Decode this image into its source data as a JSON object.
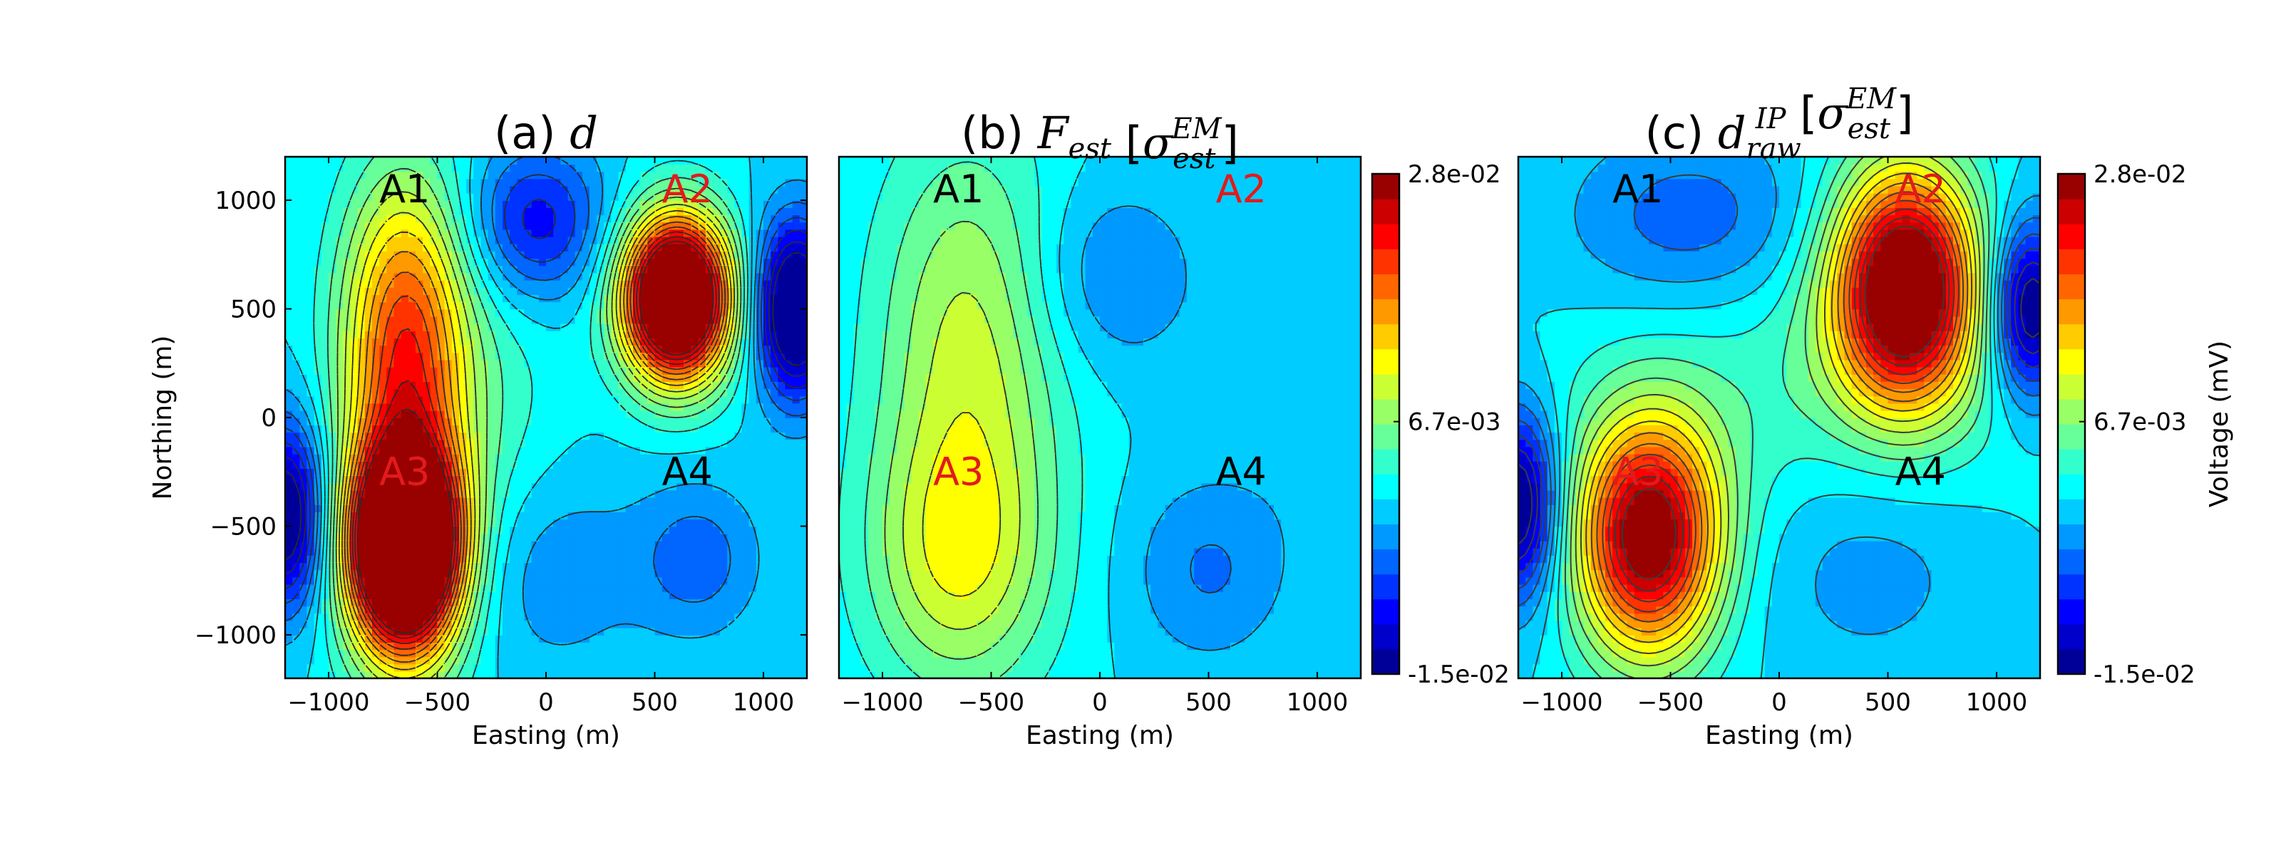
{
  "chart_data": [
    {
      "type": "heatmap",
      "panel": "a",
      "title": "(a) d",
      "title_text": "(a) ",
      "title_math": "d",
      "title_math_sub": "",
      "title_math_sup": "",
      "title_math_arg": "",
      "xlabel": "Easting (m)",
      "ylabel": "Northing (m)",
      "xlim": [
        -1200,
        1200
      ],
      "ylim": [
        -1200,
        1200
      ],
      "xticks": [
        -1000,
        -500,
        0,
        500,
        1000
      ],
      "yticks": [
        1000,
        500,
        0,
        -500,
        -1000
      ],
      "xticklabels": [
        "−1000",
        "−500",
        "0",
        "500",
        "1000"
      ],
      "yticklabels": [
        "1000",
        "500",
        "0",
        "−500",
        "−1000"
      ],
      "contour_line_style": "dashed",
      "sources": [
        {
          "x": 600,
          "y": 550,
          "amp": 0.043,
          "sx": 170,
          "sy": 260
        },
        {
          "x": -650,
          "y": -600,
          "amp": 0.043,
          "sx": 170,
          "sy": 300
        },
        {
          "x": -650,
          "y": 450,
          "amp": 0.016,
          "sx": 200,
          "sy": 500
        },
        {
          "x": -650,
          "y": -400,
          "amp": 0.012,
          "sx": 200,
          "sy": 600
        },
        {
          "x": 1150,
          "y": 500,
          "amp": -0.02,
          "sx": 130,
          "sy": 280
        },
        {
          "x": -1200,
          "y": -450,
          "amp": -0.017,
          "sx": 130,
          "sy": 300
        },
        {
          "x": -50,
          "y": 900,
          "amp": -0.01,
          "sx": 220,
          "sy": 250
        },
        {
          "x": 700,
          "y": -650,
          "amp": -0.0055,
          "sx": 200,
          "sy": 250
        },
        {
          "x": 0,
          "y": -700,
          "amp": -0.004,
          "sx": 300,
          "sy": 350
        },
        {
          "x": -250,
          "y": 0,
          "amp": 0.003,
          "sx": 250,
          "sy": 600
        }
      ],
      "annotations": [
        {
          "text": "A1",
          "x": -650,
          "y": 1050,
          "color": "#000000"
        },
        {
          "text": "A2",
          "x": 650,
          "y": 1050,
          "color": "#e31a1c"
        },
        {
          "text": "A3",
          "x": -650,
          "y": -250,
          "color": "#e31a1c"
        },
        {
          "text": "A4",
          "x": 650,
          "y": -250,
          "color": "#000000"
        }
      ]
    },
    {
      "type": "heatmap",
      "panel": "b",
      "title": "(b) F[σ_est^EM]",
      "title_text": "(b) ",
      "title_math": "F",
      "title_math_sub": "est",
      "title_math_sup": "EM",
      "title_math_arg": "σ",
      "xlabel": "Easting (m)",
      "ylabel": "",
      "xlim": [
        -1200,
        1200
      ],
      "ylim": [
        -1200,
        1200
      ],
      "xticks": [
        -1000,
        -500,
        0,
        500,
        1000
      ],
      "yticks": [],
      "xticklabels": [
        "−1000",
        "−500",
        "0",
        "500",
        "1000"
      ],
      "yticklabels": [],
      "contour_line_style": "dashed",
      "sources": [
        {
          "x": -600,
          "y": 400,
          "amp": 0.009,
          "sx": 300,
          "sy": 650
        },
        {
          "x": -650,
          "y": -650,
          "amp": 0.01,
          "sx": 300,
          "sy": 450
        },
        {
          "x": 50,
          "y": 650,
          "amp": -0.0045,
          "sx": 280,
          "sy": 300
        },
        {
          "x": 500,
          "y": -700,
          "amp": -0.0045,
          "sx": 250,
          "sy": 300
        },
        {
          "x": 1000,
          "y": 100,
          "amp": -0.0015,
          "sx": 250,
          "sy": 500
        }
      ],
      "annotations": [
        {
          "text": "A1",
          "x": -650,
          "y": 1050,
          "color": "#000000"
        },
        {
          "text": "A2",
          "x": 650,
          "y": 1050,
          "color": "#e31a1c"
        },
        {
          "text": "A3",
          "x": -650,
          "y": -250,
          "color": "#e31a1c"
        },
        {
          "text": "A4",
          "x": 650,
          "y": -250,
          "color": "#000000"
        }
      ]
    },
    {
      "type": "heatmap",
      "panel": "c",
      "title": "(c) d_raw^IP[σ_est^EM]",
      "title_text": "(c) ",
      "title_math": "d",
      "title_math_sub": "raw",
      "title_math_sup": "IP",
      "title_math_arg": "σ",
      "title_math_arg_sub": "est",
      "title_math_arg_sup": "EM",
      "xlabel": "Easting (m)",
      "ylabel": "",
      "xlim": [
        -1200,
        1200
      ],
      "ylim": [
        -1200,
        1200
      ],
      "xticks": [
        -1000,
        -500,
        0,
        500,
        1000
      ],
      "yticks": [],
      "xticklabels": [
        "−1000",
        "−500",
        "0",
        "500",
        "1000"
      ],
      "yticklabels": [],
      "contour_line_style": "solid",
      "sources": [
        {
          "x": 580,
          "y": 600,
          "amp": 0.033,
          "sx": 230,
          "sy": 380
        },
        {
          "x": -600,
          "y": -550,
          "amp": 0.029,
          "sx": 230,
          "sy": 380
        },
        {
          "x": 150,
          "y": 100,
          "amp": 0.004,
          "sx": 700,
          "sy": 500
        },
        {
          "x": 1150,
          "y": 500,
          "amp": -0.017,
          "sx": 130,
          "sy": 280
        },
        {
          "x": -1200,
          "y": -400,
          "amp": -0.017,
          "sx": 130,
          "sy": 300
        },
        {
          "x": -400,
          "y": 900,
          "amp": -0.006,
          "sx": 400,
          "sy": 300
        },
        {
          "x": 400,
          "y": -600,
          "amp": -0.004,
          "sx": 400,
          "sy": 400
        }
      ],
      "annotations": [
        {
          "text": "A1",
          "x": -650,
          "y": 1050,
          "color": "#000000"
        },
        {
          "text": "A2",
          "x": 650,
          "y": 1050,
          "color": "#e31a1c"
        },
        {
          "text": "A3",
          "x": -650,
          "y": -250,
          "color": "#e31a1c"
        },
        {
          "text": "A4",
          "x": 650,
          "y": -250,
          "color": "#000000"
        }
      ]
    }
  ],
  "colorbars": [
    {
      "panel": "b",
      "ticks": [
        "2.8e-02",
        "6.7e-03",
        "-1.5e-02"
      ],
      "tick_values": [
        0.028,
        0.0067,
        -0.015
      ],
      "label": ""
    },
    {
      "panel": "c",
      "ticks": [
        "2.8e-02",
        "6.7e-03",
        "-1.5e-02"
      ],
      "tick_values": [
        0.028,
        0.0067,
        -0.015
      ],
      "label": "Voltage (mV)"
    }
  ],
  "colormap": {
    "name": "jet",
    "vmin": -0.015,
    "vmax": 0.028,
    "levels": 20,
    "colors": [
      "#00007f",
      "#0000ff",
      "#007fff",
      "#00ffff",
      "#7fff7f",
      "#ffff00",
      "#ff7f00",
      "#ff0000",
      "#7f0000"
    ]
  }
}
